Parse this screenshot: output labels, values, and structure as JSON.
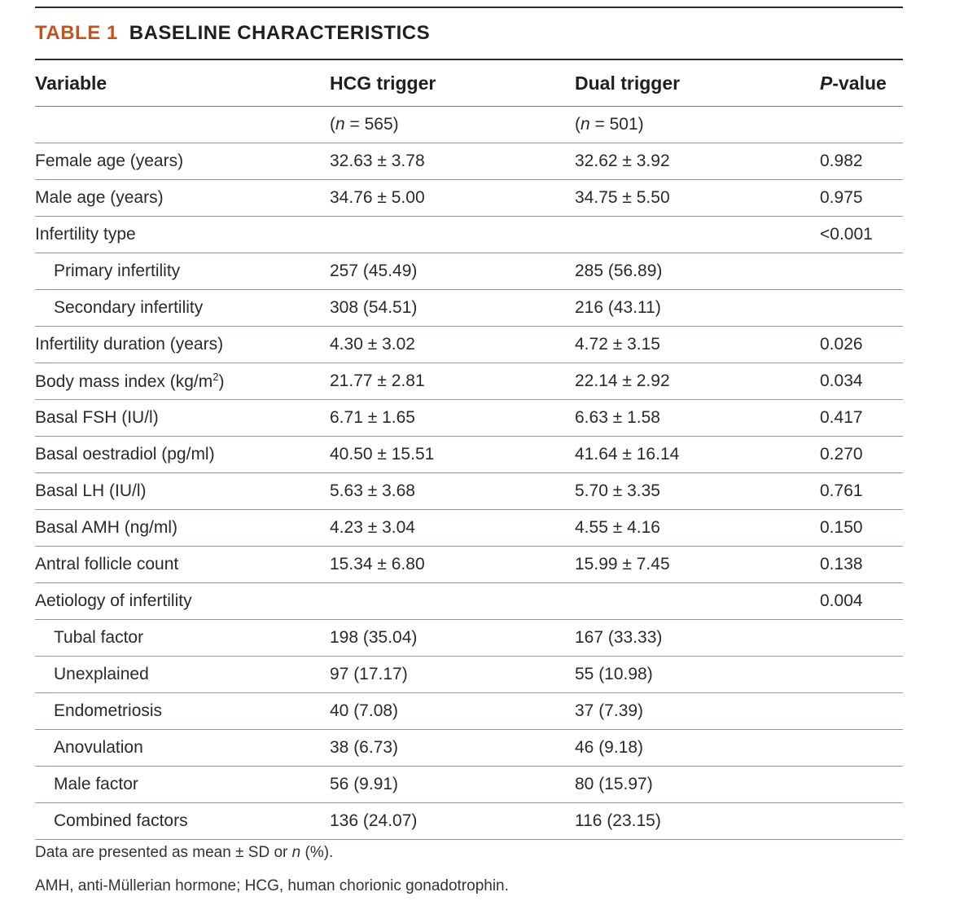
{
  "table": {
    "label": "TABLE 1",
    "title": "BASELINE CHARACTERISTICS",
    "columns": {
      "variable": "Variable",
      "hcg": "HCG trigger",
      "dual": "Dual trigger",
      "p_italic": "P",
      "p_rest": "-value"
    },
    "n_row": {
      "n_symbol": "n",
      "hcg_rest": " = 565)",
      "dual_rest": " = 501)"
    },
    "bmi": {
      "label_main": "Body mass index (kg/m",
      "label_sup": "2",
      "label_end": ")",
      "hcg": "21.77 ± 2.81",
      "dual": "22.14 ± 2.92",
      "p": "0.034"
    },
    "rows": [
      {
        "label": "Female age (years)",
        "hcg": "32.63 ± 3.78",
        "dual": "32.62 ± 3.92",
        "p": "0.982"
      },
      {
        "label": "Male age (years)",
        "hcg": "34.76 ± 5.00",
        "dual": "34.75 ± 5.50",
        "p": "0.975"
      },
      {
        "label": "Infertility type",
        "hcg": "",
        "dual": "",
        "p": "<0.001"
      },
      {
        "label": "Primary infertility",
        "hcg": "257 (45.49)",
        "dual": "285 (56.89)",
        "p": ""
      },
      {
        "label": "Secondary infertility",
        "hcg": "308 (54.51)",
        "dual": "216 (43.11)",
        "p": ""
      },
      {
        "label": "Infertility duration (years)",
        "hcg": "4.30 ± 3.02",
        "dual": "4.72 ± 3.15",
        "p": "0.026"
      },
      {
        "label": "Basal FSH (IU/l)",
        "hcg": "6.71 ± 1.65",
        "dual": "6.63 ± 1.58",
        "p": "0.417"
      },
      {
        "label": "Basal oestradiol (pg/ml)",
        "hcg": "40.50 ± 15.51",
        "dual": "41.64 ± 16.14",
        "p": "0.270"
      },
      {
        "label": "Basal LH (IU/l)",
        "hcg": "5.63 ± 3.68",
        "dual": "5.70 ± 3.35",
        "p": "0.761"
      },
      {
        "label": "Basal AMH (ng/ml)",
        "hcg": "4.23 ± 3.04",
        "dual": "4.55 ± 4.16",
        "p": "0.150"
      },
      {
        "label": "Antral follicle count",
        "hcg": "15.34 ± 6.80",
        "dual": "15.99 ± 7.45",
        "p": "0.138"
      },
      {
        "label": "Aetiology of infertility",
        "hcg": "",
        "dual": "",
        "p": "0.004"
      },
      {
        "label": "Tubal factor",
        "hcg": "198 (35.04)",
        "dual": "167 (33.33)",
        "p": ""
      },
      {
        "label": "Unexplained",
        "hcg": "97 (17.17)",
        "dual": "55 (10.98)",
        "p": ""
      },
      {
        "label": "Endometriosis",
        "hcg": "40 (7.08)",
        "dual": "37 (7.39)",
        "p": ""
      },
      {
        "label": "Anovulation",
        "hcg": "38 (6.73)",
        "dual": "46 (9.18)",
        "p": ""
      },
      {
        "label": "Male factor",
        "hcg": "56 (9.91)",
        "dual": "80 (15.97)",
        "p": ""
      },
      {
        "label": "Combined factors",
        "hcg": "136 (24.07)",
        "dual": "116 (23.15)",
        "p": ""
      }
    ],
    "footnote1_pre": "Data are presented as mean ± SD or ",
    "footnote1_n": "n",
    "footnote1_post": " (%).",
    "footnote2": "AMH, anti-Müllerian hormone; HCG, human chorionic gonadotrophin."
  }
}
